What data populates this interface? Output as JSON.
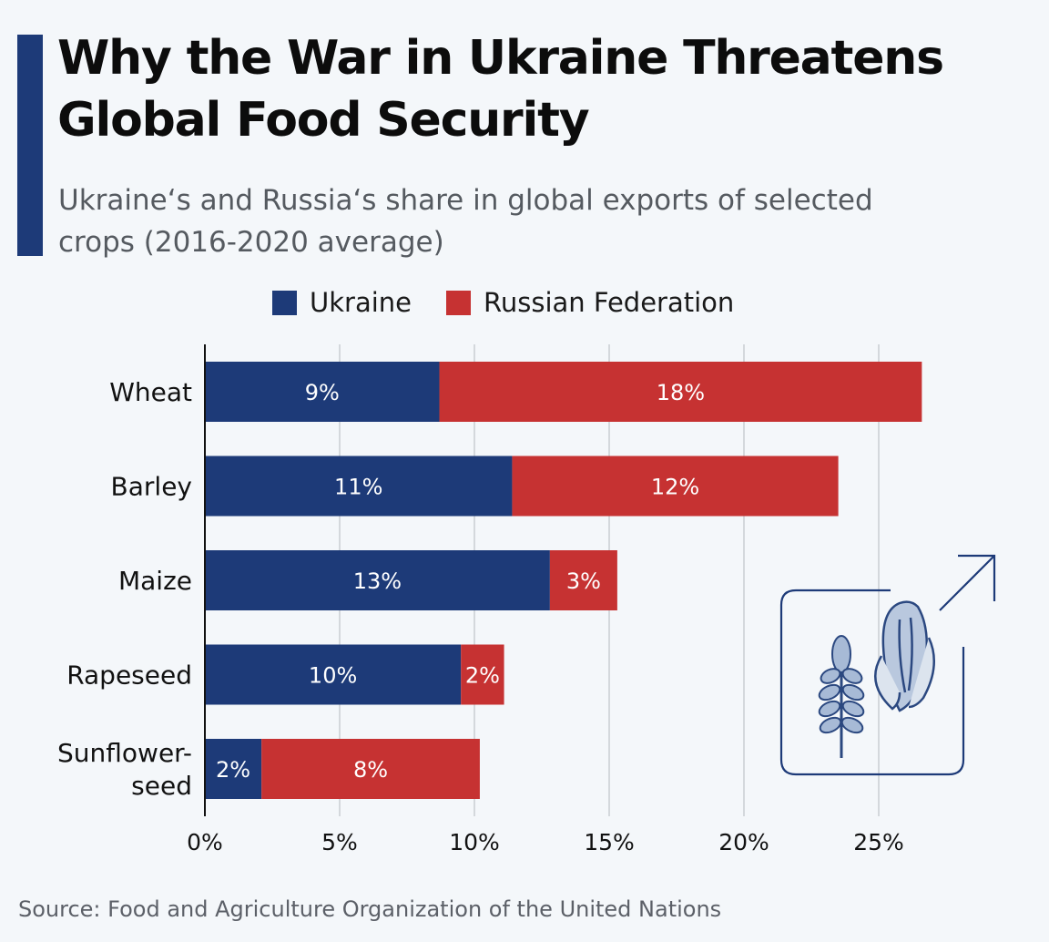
{
  "title": "Why the War in Ukraine Threatens Global Food Security",
  "subtitle": "Ukraine‘s and Russia‘s share in global exports of selected crops (2016-2020 average)",
  "source": "Source: Food and Agriculture Organization of the United Nations",
  "colors": {
    "ukraine": "#1d3a78",
    "russia": "#c63232",
    "accent": "#1d3a78",
    "grid": "#c4c8cc"
  },
  "icons": [
    "crop-illustration-icon",
    "arrow-up-right-icon"
  ],
  "chart_data": {
    "type": "bar",
    "orientation": "horizontal",
    "stacked": true,
    "categories": [
      [
        "Wheat"
      ],
      [
        "Barley"
      ],
      [
        "Maize"
      ],
      [
        "Rapeseed"
      ],
      [
        "Sunflower-",
        "seed"
      ]
    ],
    "series": [
      {
        "name": "Ukraine",
        "values": [
          8.7,
          11.4,
          12.8,
          9.5,
          2.1
        ],
        "labels": [
          "9%",
          "11%",
          "13%",
          "10%",
          "2%"
        ]
      },
      {
        "name": "Russian Federation",
        "values": [
          17.9,
          12.1,
          2.5,
          1.6,
          8.1
        ],
        "labels": [
          "18%",
          "12%",
          "3%",
          "2%",
          "8%"
        ]
      }
    ],
    "xlim": [
      0,
      30
    ],
    "xticks": [
      0,
      5,
      10,
      15,
      20,
      25
    ],
    "xtick_labels": [
      "0%",
      "5%",
      "10%",
      "15%",
      "20%",
      "25%"
    ],
    "grid": true,
    "legend_position": "top-center"
  }
}
